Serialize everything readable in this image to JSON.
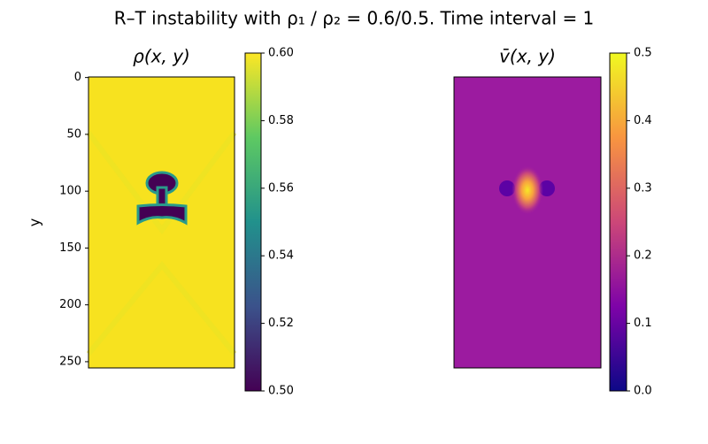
{
  "title": "R–T instability with ρ₁ / ρ₂ = 0.6/0.5. Time interval = 1",
  "chart_data": [
    {
      "type": "image",
      "title": "ρ(x, y)",
      "y_label": "y",
      "ylim": [
        255.5,
        -0.5
      ],
      "yticks": [
        0,
        50,
        100,
        150,
        200,
        250
      ],
      "colormap": "viridis",
      "clim": [
        0.5,
        0.6
      ],
      "colorbar_ticks": [
        {
          "value": 0.5,
          "label": "0.50"
        },
        {
          "value": 0.52,
          "label": "0.52"
        },
        {
          "value": 0.54,
          "label": "0.54"
        },
        {
          "value": 0.56,
          "label": "0.56"
        },
        {
          "value": 0.58,
          "label": "0.58"
        },
        {
          "value": 0.6,
          "label": "0.60"
        }
      ]
    },
    {
      "type": "image",
      "title": "v̄(x, y)",
      "colormap": "plasma",
      "clim": [
        0,
        0.5
      ],
      "colorbar_ticks": [
        {
          "value": 0,
          "label": "0.0"
        },
        0.1,
        0.2,
        0.3,
        0.4,
        0.5
      ]
    }
  ]
}
